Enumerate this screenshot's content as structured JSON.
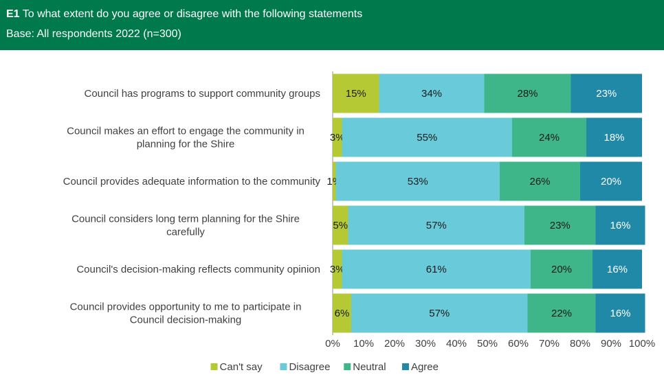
{
  "header": {
    "question_code": "E1",
    "question_text": "To what extent do you agree or disagree with the following statements",
    "base": "Base: All respondents 2022 (n=300)"
  },
  "chart_data": {
    "type": "bar",
    "orientation": "horizontal",
    "stacked": "100%",
    "categories": [
      "Council has programs to support community groups",
      "Council makes an effort to engage the community in planning for the Shire",
      "Council provides adequate information to the community",
      "Council considers long term planning for the Shire carefully",
      "Council's decision-making reflects community opinion",
      "Council provides opportunity to me to participate in Council decision-making"
    ],
    "series": [
      {
        "name": "Can't say",
        "values": [
          15,
          3,
          1,
          5,
          3,
          6
        ],
        "color": "#B5C934"
      },
      {
        "name": "Disagree",
        "values": [
          34,
          55,
          53,
          57,
          61,
          57
        ],
        "color": "#69CAD9"
      },
      {
        "name": "Neutral",
        "values": [
          28,
          24,
          26,
          23,
          20,
          22
        ],
        "color": "#3FB58A"
      },
      {
        "name": "Agree",
        "values": [
          23,
          18,
          20,
          16,
          16,
          16
        ],
        "color": "#2189A8"
      }
    ],
    "xlim": [
      0,
      100
    ],
    "x_ticks": [
      "0%",
      "10%",
      "20%",
      "30%",
      "40%",
      "50%",
      "60%",
      "70%",
      "80%",
      "90%",
      "100%"
    ],
    "legend_position": "bottom",
    "grid": false
  }
}
